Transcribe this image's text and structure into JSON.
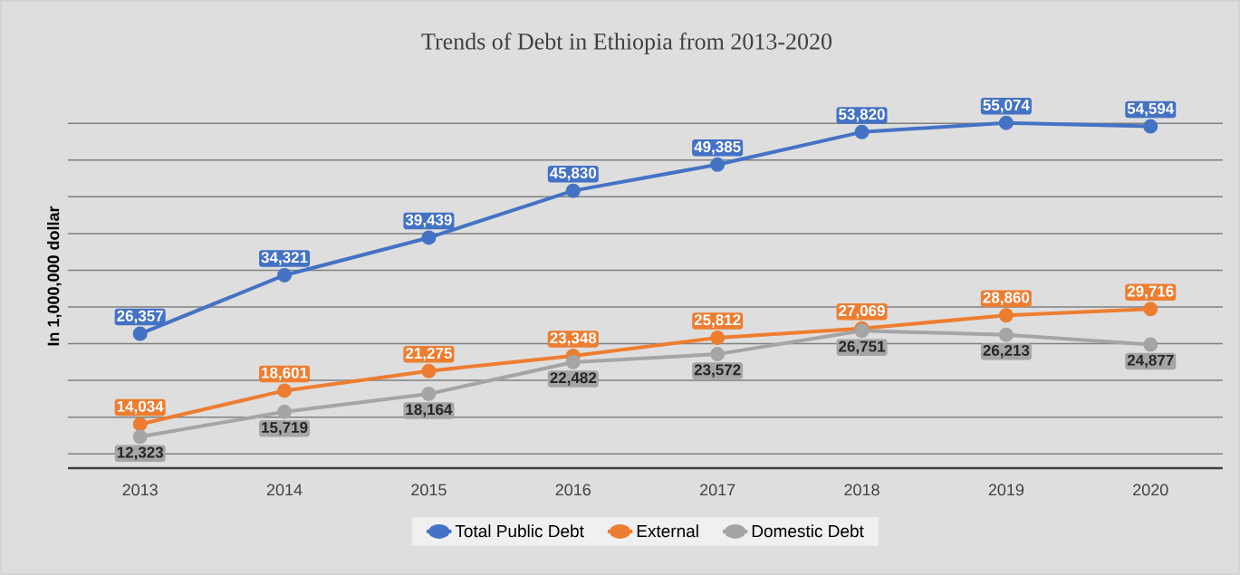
{
  "chart_data": {
    "type": "line",
    "title": "Trends of  Debt in Ethiopia from 2013-2020",
    "ylabel": "In 1,000,000 dollar",
    "categories": [
      "2013",
      "2014",
      "2015",
      "2016",
      "2017",
      "2018",
      "2019",
      "2020"
    ],
    "series": [
      {
        "name": "Total Public Debt",
        "color": "#4472c4",
        "values": [
          26357,
          34321,
          39439,
          45830,
          49385,
          53820,
          55074,
          54594
        ],
        "value_labels": [
          "26,357",
          "34,321",
          "39,439",
          "45,830",
          "49,385",
          "53,820",
          "55,074",
          "54,594"
        ]
      },
      {
        "name": "External",
        "color": "#ed7d31",
        "values": [
          14034,
          18601,
          21275,
          23348,
          25812,
          27069,
          28860,
          29716
        ],
        "value_labels": [
          "14,034",
          "18,601",
          "21,275",
          "23,348",
          "25,812",
          "27,069",
          "28,860",
          "29,716"
        ]
      },
      {
        "name": "Domestic Debt",
        "color": "#a5a5a5",
        "values": [
          12323,
          15719,
          18164,
          22482,
          23572,
          26751,
          26213,
          24877
        ],
        "value_labels": [
          "12,323",
          "15,719",
          "18,164",
          "22,482",
          "23,572",
          "26,751",
          "26,213",
          "24,877"
        ]
      }
    ],
    "tick_labels": "x",
    "grid": "y",
    "legend": "bottom",
    "marker": "circle",
    "line_style": "solid"
  }
}
